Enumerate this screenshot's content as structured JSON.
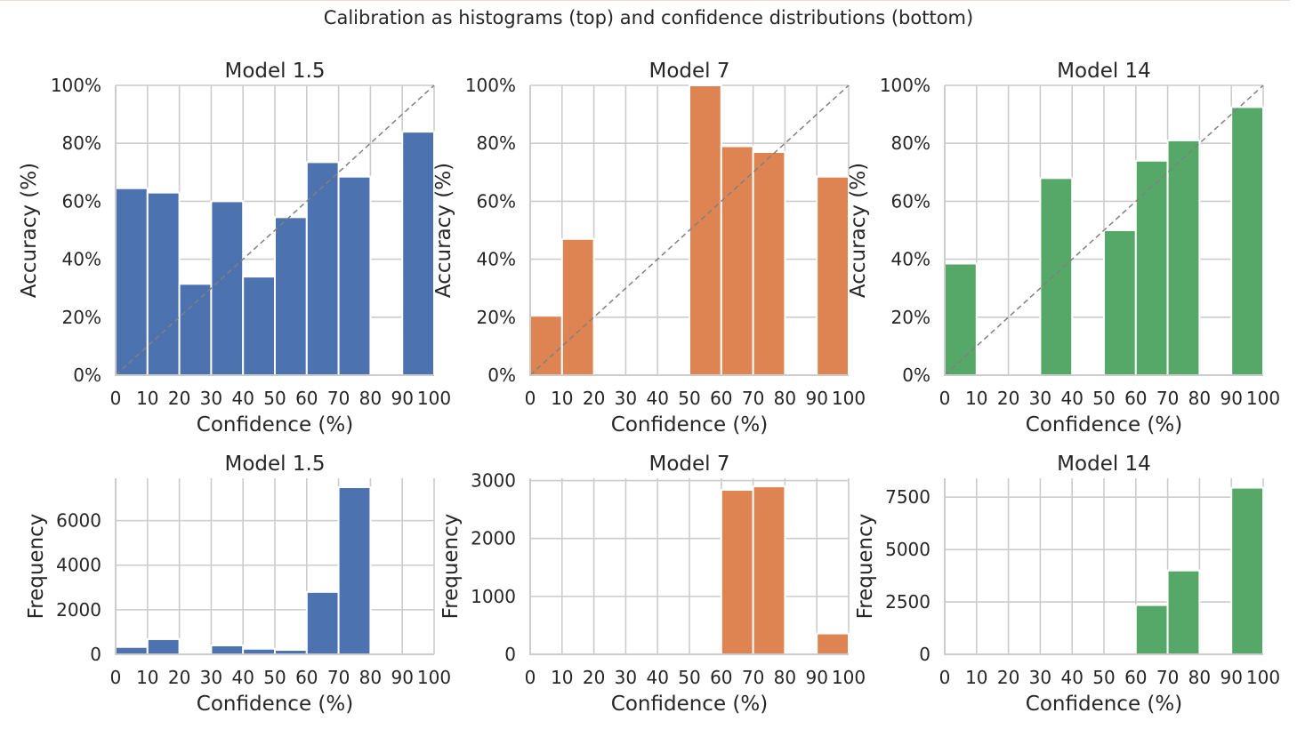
{
  "figure": {
    "suptitle": "Calibration as histograms (top) and confidence distributions (bottom)"
  },
  "chart_data": [
    {
      "type": "bar",
      "row": "top",
      "title": "Model 1.5",
      "xlabel": "Confidence (%)",
      "ylabel": "Accuracy (%)",
      "xlim": [
        0,
        100
      ],
      "ylim": [
        0,
        100
      ],
      "xticks": [
        "0",
        "10",
        "20",
        "30",
        "40",
        "50",
        "60",
        "70",
        "80",
        "90",
        "100"
      ],
      "yticks": [
        "0%",
        "20%",
        "40%",
        "60%",
        "80%",
        "100%"
      ],
      "ytick_values": [
        0,
        20,
        40,
        60,
        80,
        100
      ],
      "bin_edges": [
        0,
        10,
        20,
        30,
        40,
        50,
        60,
        70,
        80,
        90,
        100
      ],
      "values": [
        64.5,
        63,
        31.5,
        60,
        34,
        54.5,
        73.5,
        68.5,
        0,
        84
      ],
      "color": "#4c72b0",
      "diagonal": true,
      "grid": true
    },
    {
      "type": "bar",
      "row": "top",
      "title": "Model 7",
      "xlabel": "Confidence (%)",
      "ylabel": "Accuracy (%)",
      "xlim": [
        0,
        100
      ],
      "ylim": [
        0,
        100
      ],
      "xticks": [
        "0",
        "10",
        "20",
        "30",
        "40",
        "50",
        "60",
        "70",
        "80",
        "90",
        "100"
      ],
      "yticks": [
        "0%",
        "20%",
        "40%",
        "60%",
        "80%",
        "100%"
      ],
      "ytick_values": [
        0,
        20,
        40,
        60,
        80,
        100
      ],
      "bin_edges": [
        0,
        10,
        20,
        30,
        40,
        50,
        60,
        70,
        80,
        90,
        100
      ],
      "values": [
        20.5,
        47,
        0,
        0,
        0,
        100,
        79,
        77,
        0,
        68.5
      ],
      "color": "#dd8452",
      "diagonal": true,
      "grid": true
    },
    {
      "type": "bar",
      "row": "top",
      "title": "Model 14",
      "xlabel": "Confidence (%)",
      "ylabel": "Accuracy (%)",
      "xlim": [
        0,
        100
      ],
      "ylim": [
        0,
        100
      ],
      "xticks": [
        "0",
        "10",
        "20",
        "30",
        "40",
        "50",
        "60",
        "70",
        "80",
        "90",
        "100"
      ],
      "yticks": [
        "0%",
        "20%",
        "40%",
        "60%",
        "80%",
        "100%"
      ],
      "ytick_values": [
        0,
        20,
        40,
        60,
        80,
        100
      ],
      "bin_edges": [
        0,
        10,
        20,
        30,
        40,
        50,
        60,
        70,
        80,
        90,
        100
      ],
      "values": [
        38.5,
        0,
        0,
        68,
        0,
        50,
        74,
        81,
        0,
        92.5
      ],
      "color": "#55a868",
      "diagonal": true,
      "grid": true
    },
    {
      "type": "bar",
      "row": "bottom",
      "title": "Model 1.5",
      "xlabel": "Confidence (%)",
      "ylabel": "Frequency",
      "xlim": [
        0,
        100
      ],
      "ylim": [
        0,
        7900
      ],
      "xticks": [
        "0",
        "10",
        "20",
        "30",
        "40",
        "50",
        "60",
        "70",
        "80",
        "90",
        "100"
      ],
      "yticks": [
        "0",
        "2000",
        "4000",
        "6000"
      ],
      "ytick_values": [
        0,
        2000,
        4000,
        6000
      ],
      "bin_edges": [
        0,
        10,
        20,
        30,
        40,
        50,
        60,
        70,
        80,
        90,
        100
      ],
      "values": [
        330,
        680,
        0,
        400,
        250,
        200,
        2800,
        7500,
        0,
        0
      ],
      "color": "#4c72b0",
      "diagonal": false,
      "grid": true
    },
    {
      "type": "bar",
      "row": "bottom",
      "title": "Model 7",
      "xlabel": "Confidence (%)",
      "ylabel": "Frequency",
      "xlim": [
        0,
        100
      ],
      "ylim": [
        0,
        3040
      ],
      "xticks": [
        "0",
        "10",
        "20",
        "30",
        "40",
        "50",
        "60",
        "70",
        "80",
        "90",
        "100"
      ],
      "yticks": [
        "0",
        "1000",
        "2000",
        "3000"
      ],
      "ytick_values": [
        0,
        1000,
        2000,
        3000
      ],
      "bin_edges": [
        0,
        10,
        20,
        30,
        40,
        50,
        60,
        70,
        80,
        90,
        100
      ],
      "values": [
        0,
        0,
        0,
        0,
        0,
        0,
        2840,
        2900,
        0,
        360
      ],
      "color": "#dd8452",
      "diagonal": false,
      "grid": true
    },
    {
      "type": "bar",
      "row": "bottom",
      "title": "Model 14",
      "xlabel": "Confidence (%)",
      "ylabel": "Frequency",
      "xlim": [
        0,
        100
      ],
      "ylim": [
        0,
        8400
      ],
      "xticks": [
        "0",
        "10",
        "20",
        "30",
        "40",
        "50",
        "60",
        "70",
        "80",
        "90",
        "100"
      ],
      "yticks": [
        "0",
        "2500",
        "5000",
        "7500"
      ],
      "ytick_values": [
        0,
        2500,
        5000,
        7500
      ],
      "bin_edges": [
        0,
        10,
        20,
        30,
        40,
        50,
        60,
        70,
        80,
        90,
        100
      ],
      "values": [
        0,
        0,
        0,
        0,
        0,
        0,
        2350,
        4000,
        0,
        7950
      ],
      "color": "#55a868",
      "diagonal": false,
      "grid": true
    }
  ]
}
